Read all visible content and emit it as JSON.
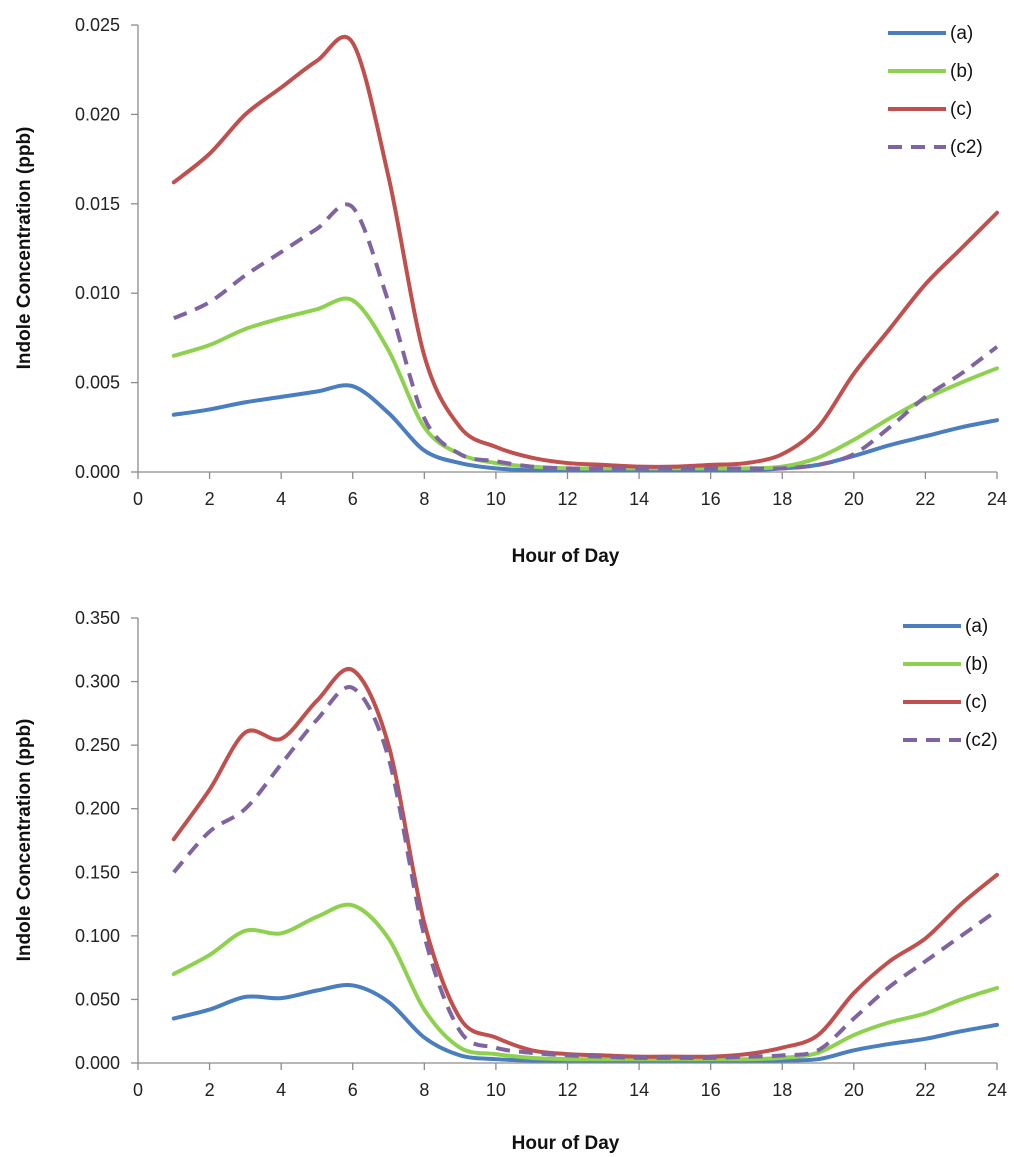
{
  "chart_data": [
    {
      "type": "line",
      "title": "",
      "xlabel": "Hour of Day",
      "ylabel": "Indole Concentration (ppb)",
      "xlim": [
        0,
        24
      ],
      "ylim": [
        0,
        0.025
      ],
      "x_ticks": [
        0,
        2,
        4,
        6,
        8,
        10,
        12,
        14,
        16,
        18,
        20,
        22,
        24
      ],
      "y_ticks": [
        "0.000",
        "0.005",
        "0.010",
        "0.015",
        "0.020",
        "0.025"
      ],
      "grid": false,
      "legend": "top-right",
      "series": [
        {
          "name": "(a)",
          "color": "#4a7ebf",
          "dash": "solid",
          "x": [
            1,
            2,
            3,
            4,
            5,
            6,
            7,
            8,
            9,
            10,
            11,
            12,
            13,
            14,
            15,
            16,
            17,
            18,
            19,
            20,
            21,
            22,
            23,
            24
          ],
          "y": [
            0.0032,
            0.0035,
            0.0039,
            0.0042,
            0.0045,
            0.0048,
            0.0033,
            0.0012,
            0.0005,
            0.0002,
            0.0001,
            0.0001,
            0.0001,
            0.0001,
            0.0001,
            0.0001,
            0.0001,
            0.0002,
            0.0004,
            0.0009,
            0.0015,
            0.002,
            0.0025,
            0.0029
          ]
        },
        {
          "name": "(b)",
          "color": "#8ed14f",
          "dash": "solid",
          "x": [
            1,
            2,
            3,
            4,
            5,
            6,
            7,
            8,
            9,
            10,
            11,
            12,
            13,
            14,
            15,
            16,
            17,
            18,
            19,
            20,
            21,
            22,
            23,
            24
          ],
          "y": [
            0.0065,
            0.0071,
            0.008,
            0.0086,
            0.0091,
            0.0096,
            0.0068,
            0.0025,
            0.001,
            0.0005,
            0.0003,
            0.0002,
            0.0002,
            0.0002,
            0.0002,
            0.0002,
            0.0002,
            0.0003,
            0.0008,
            0.0018,
            0.003,
            0.0041,
            0.005,
            0.0058
          ]
        },
        {
          "name": "(c)",
          "color": "#c0504d",
          "dash": "solid",
          "x": [
            1,
            2,
            3,
            4,
            5,
            6,
            7,
            8,
            9,
            10,
            11,
            12,
            13,
            14,
            15,
            16,
            17,
            18,
            19,
            20,
            21,
            22,
            23,
            24
          ],
          "y": [
            0.0162,
            0.0178,
            0.02,
            0.0215,
            0.023,
            0.024,
            0.0165,
            0.0065,
            0.0025,
            0.0014,
            0.0008,
            0.0005,
            0.0004,
            0.0003,
            0.0003,
            0.0004,
            0.0005,
            0.001,
            0.0025,
            0.0055,
            0.008,
            0.0105,
            0.0125,
            0.0145
          ]
        },
        {
          "name": "(c2)",
          "color": "#8064a2",
          "dash": "dashed",
          "x": [
            1,
            2,
            3,
            4,
            5,
            6,
            7,
            8,
            9,
            10,
            11,
            12,
            13,
            14,
            15,
            16,
            17,
            18,
            19,
            20,
            21,
            22,
            23,
            24
          ],
          "y": [
            0.0086,
            0.0095,
            0.011,
            0.0123,
            0.0136,
            0.0148,
            0.0095,
            0.003,
            0.001,
            0.0006,
            0.0003,
            0.0002,
            0.0002,
            0.0002,
            0.0002,
            0.0002,
            0.0002,
            0.0002,
            0.0004,
            0.001,
            0.0025,
            0.0042,
            0.0055,
            0.007
          ]
        }
      ]
    },
    {
      "type": "line",
      "title": "",
      "xlabel": "Hour of Day",
      "ylabel": "Indole Concentration (ppb)",
      "xlim": [
        0,
        24
      ],
      "ylim": [
        0,
        0.35
      ],
      "x_ticks": [
        0,
        2,
        4,
        6,
        8,
        10,
        12,
        14,
        16,
        18,
        20,
        22,
        24
      ],
      "y_ticks": [
        "0.000",
        "0.050",
        "0.100",
        "0.150",
        "0.200",
        "0.250",
        "0.300",
        "0.350"
      ],
      "grid": false,
      "legend": "top-right",
      "series": [
        {
          "name": "(a)",
          "color": "#4a7ebf",
          "dash": "solid",
          "x": [
            1,
            2,
            3,
            4,
            5,
            6,
            7,
            8,
            9,
            10,
            11,
            12,
            13,
            14,
            15,
            16,
            17,
            18,
            19,
            20,
            21,
            22,
            23,
            24
          ],
          "y": [
            0.035,
            0.042,
            0.052,
            0.051,
            0.057,
            0.061,
            0.048,
            0.02,
            0.006,
            0.003,
            0.002,
            0.002,
            0.002,
            0.002,
            0.002,
            0.002,
            0.002,
            0.002,
            0.003,
            0.01,
            0.015,
            0.019,
            0.025,
            0.03
          ]
        },
        {
          "name": "(b)",
          "color": "#8ed14f",
          "dash": "solid",
          "x": [
            1,
            2,
            3,
            4,
            5,
            6,
            7,
            8,
            9,
            10,
            11,
            12,
            13,
            14,
            15,
            16,
            17,
            18,
            19,
            20,
            21,
            22,
            23,
            24
          ],
          "y": [
            0.07,
            0.085,
            0.104,
            0.102,
            0.115,
            0.124,
            0.098,
            0.042,
            0.012,
            0.007,
            0.004,
            0.003,
            0.003,
            0.003,
            0.003,
            0.003,
            0.003,
            0.004,
            0.008,
            0.022,
            0.032,
            0.039,
            0.05,
            0.059
          ]
        },
        {
          "name": "(c)",
          "color": "#c0504d",
          "dash": "solid",
          "x": [
            1,
            2,
            3,
            4,
            5,
            6,
            7,
            8,
            9,
            10,
            11,
            12,
            13,
            14,
            15,
            16,
            17,
            18,
            19,
            20,
            21,
            22,
            23,
            24
          ],
          "y": [
            0.176,
            0.215,
            0.26,
            0.255,
            0.285,
            0.309,
            0.25,
            0.11,
            0.035,
            0.02,
            0.01,
            0.007,
            0.006,
            0.005,
            0.005,
            0.005,
            0.007,
            0.012,
            0.022,
            0.055,
            0.08,
            0.098,
            0.125,
            0.148
          ]
        },
        {
          "name": "(c2)",
          "color": "#8064a2",
          "dash": "dashed",
          "x": [
            1,
            2,
            3,
            4,
            5,
            6,
            7,
            8,
            9,
            10,
            11,
            12,
            13,
            14,
            15,
            16,
            17,
            18,
            19,
            20,
            21,
            22,
            23,
            24
          ],
          "y": [
            0.15,
            0.182,
            0.2,
            0.235,
            0.27,
            0.295,
            0.24,
            0.1,
            0.025,
            0.012,
            0.008,
            0.006,
            0.005,
            0.004,
            0.004,
            0.004,
            0.005,
            0.006,
            0.01,
            0.035,
            0.06,
            0.08,
            0.1,
            0.12
          ]
        }
      ]
    }
  ]
}
